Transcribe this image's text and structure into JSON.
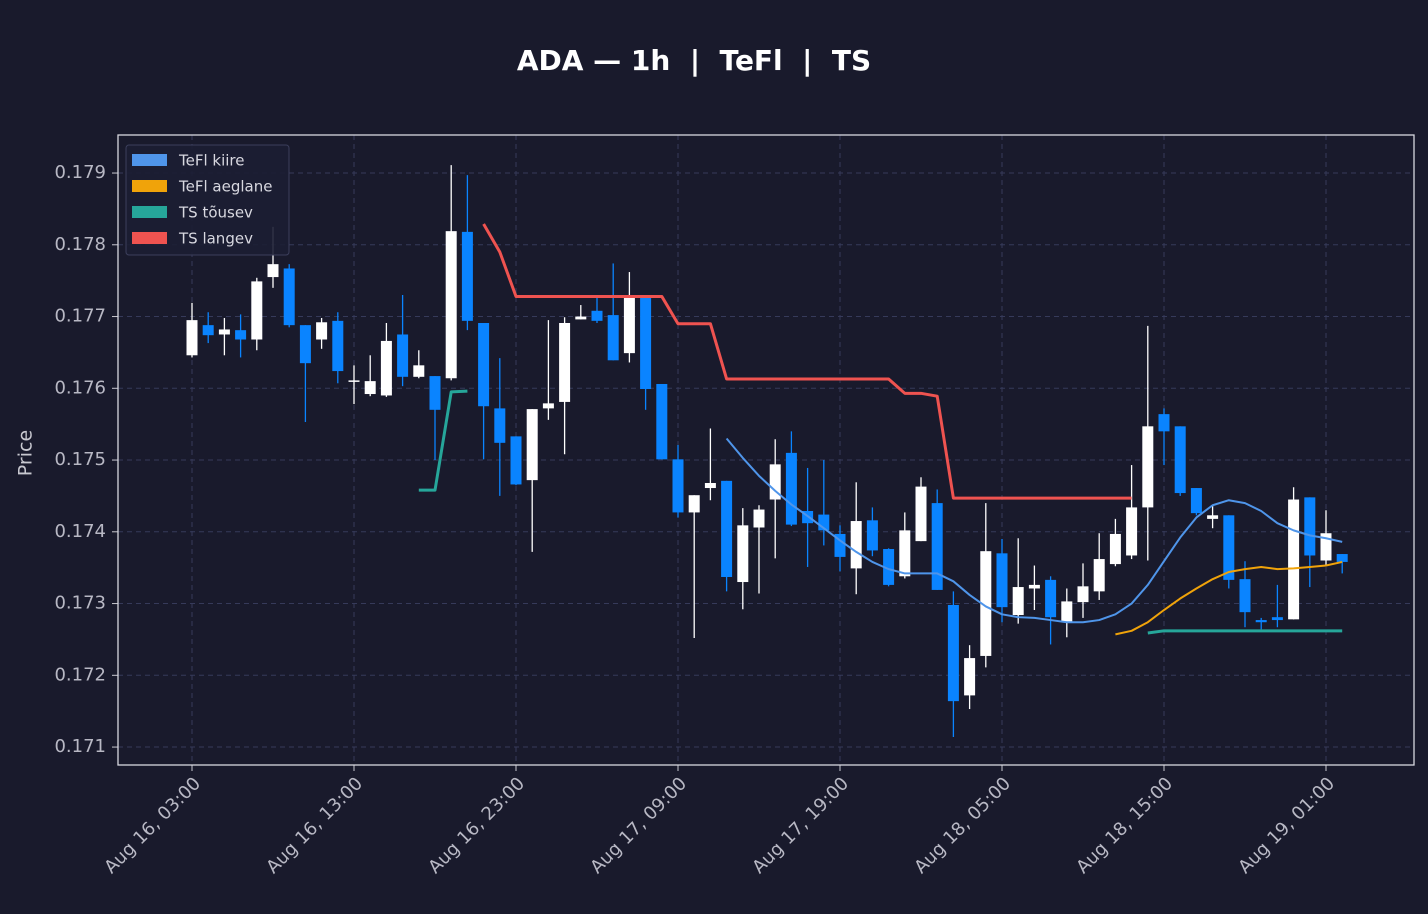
{
  "chart_data": {
    "type": "candlestick",
    "title": "ADA — 1h  |  TeFl  |  TS",
    "y_label": "Price",
    "up_color": "#ffffff",
    "down_color": "#0a84ff",
    "grid": true,
    "legend_position": "upper left",
    "ylim": [
      0.17075,
      0.17953
    ],
    "yticks": [
      0.171,
      0.172,
      0.173,
      0.174,
      0.175,
      0.176,
      0.177,
      0.178,
      0.179
    ],
    "xticks": [
      "Aug 16, 03:00",
      "Aug 16, 13:00",
      "Aug 16, 23:00",
      "Aug 17, 09:00",
      "Aug 17, 19:00",
      "Aug 18, 05:00",
      "Aug 18, 15:00",
      "Aug 19, 01:00"
    ],
    "x": [
      "Aug 16, 03:00",
      "Aug 16, 04:00",
      "Aug 16, 05:00",
      "Aug 16, 06:00",
      "Aug 16, 07:00",
      "Aug 16, 08:00",
      "Aug 16, 09:00",
      "Aug 16, 10:00",
      "Aug 16, 11:00",
      "Aug 16, 12:00",
      "Aug 16, 13:00",
      "Aug 16, 14:00",
      "Aug 16, 15:00",
      "Aug 16, 16:00",
      "Aug 16, 17:00",
      "Aug 16, 18:00",
      "Aug 16, 19:00",
      "Aug 16, 20:00",
      "Aug 16, 21:00",
      "Aug 16, 22:00",
      "Aug 16, 23:00",
      "Aug 17, 00:00",
      "Aug 17, 01:00",
      "Aug 17, 02:00",
      "Aug 17, 03:00",
      "Aug 17, 04:00",
      "Aug 17, 05:00",
      "Aug 17, 06:00",
      "Aug 17, 07:00",
      "Aug 17, 08:00",
      "Aug 17, 09:00",
      "Aug 17, 10:00",
      "Aug 17, 11:00",
      "Aug 17, 12:00",
      "Aug 17, 13:00",
      "Aug 17, 14:00",
      "Aug 17, 15:00",
      "Aug 17, 16:00",
      "Aug 17, 17:00",
      "Aug 17, 18:00",
      "Aug 17, 19:00",
      "Aug 17, 20:00",
      "Aug 17, 21:00",
      "Aug 17, 22:00",
      "Aug 17, 23:00",
      "Aug 18, 00:00",
      "Aug 18, 01:00",
      "Aug 18, 02:00",
      "Aug 18, 03:00",
      "Aug 18, 04:00",
      "Aug 18, 05:00",
      "Aug 18, 06:00",
      "Aug 18, 07:00",
      "Aug 18, 08:00",
      "Aug 18, 09:00",
      "Aug 18, 10:00",
      "Aug 18, 11:00",
      "Aug 18, 12:00",
      "Aug 18, 13:00",
      "Aug 18, 14:00",
      "Aug 18, 15:00",
      "Aug 18, 16:00",
      "Aug 18, 17:00",
      "Aug 18, 18:00",
      "Aug 18, 19:00",
      "Aug 18, 20:00",
      "Aug 18, 21:00",
      "Aug 18, 22:00",
      "Aug 18, 23:00",
      "Aug 19, 00:00",
      "Aug 19, 01:00",
      "Aug 19, 02:00"
    ],
    "open": [
      0.17646,
      0.17688,
      0.17675,
      0.17681,
      0.17668,
      0.17755,
      0.17767,
      0.17688,
      0.17668,
      0.17694,
      0.17609,
      0.17592,
      0.1759,
      0.17675,
      0.17616,
      0.17617,
      0.17614,
      0.17818,
      0.17691,
      0.17572,
      0.17533,
      0.17472,
      0.17572,
      0.17581,
      0.17696,
      0.17708,
      0.17702,
      0.17649,
      0.17727,
      0.17606,
      0.17501,
      0.17427,
      0.17461,
      0.17471,
      0.1733,
      0.17406,
      0.17445,
      0.1751,
      0.17429,
      0.17424,
      0.17397,
      0.17349,
      0.17416,
      0.17376,
      0.17338,
      0.17387,
      0.1744,
      0.17298,
      0.17172,
      0.17227,
      0.1737,
      0.17284,
      0.17321,
      0.17333,
      0.17274,
      0.17302,
      0.17317,
      0.17355,
      0.17367,
      0.17434,
      0.17564,
      0.17547,
      0.17461,
      0.17418,
      0.17423,
      0.17334,
      0.17277,
      0.17281,
      0.17278,
      0.17448,
      0.1736,
      0.17369
    ],
    "high": [
      0.17719,
      0.17706,
      0.17698,
      0.17703,
      0.17754,
      0.17825,
      0.17773,
      0.17688,
      0.17698,
      0.17706,
      0.17632,
      0.17646,
      0.17691,
      0.1773,
      0.17653,
      0.17617,
      0.17911,
      0.17897,
      0.17691,
      0.17642,
      0.17533,
      0.17571,
      0.17695,
      0.17699,
      0.17716,
      0.17728,
      0.17774,
      0.17762,
      0.17727,
      0.17606,
      0.17521,
      0.17451,
      0.17544,
      0.17471,
      0.17433,
      0.17437,
      0.17529,
      0.1754,
      0.17489,
      0.175,
      0.17409,
      0.17469,
      0.17434,
      0.17377,
      0.17427,
      0.17476,
      0.17459,
      0.17317,
      0.17242,
      0.1744,
      0.1739,
      0.17391,
      0.17353,
      0.17338,
      0.17321,
      0.17356,
      0.17398,
      0.17418,
      0.17493,
      0.17687,
      0.17572,
      0.17547,
      0.17461,
      0.17437,
      0.17423,
      0.17359,
      0.1728,
      0.17326,
      0.17462,
      0.17448,
      0.1743,
      0.17369
    ],
    "low": [
      0.17643,
      0.17663,
      0.17646,
      0.17643,
      0.17653,
      0.1774,
      0.17685,
      0.17553,
      0.17655,
      0.17607,
      0.17578,
      0.17589,
      0.17588,
      0.17603,
      0.17614,
      0.175,
      0.17611,
      0.17681,
      0.17501,
      0.1745,
      0.17465,
      0.17372,
      0.17556,
      0.17508,
      0.17696,
      0.17691,
      0.17639,
      0.17636,
      0.1757,
      0.17501,
      0.1742,
      0.17252,
      0.17444,
      0.17317,
      0.17292,
      0.17314,
      0.17363,
      0.17408,
      0.17351,
      0.17381,
      0.17345,
      0.17313,
      0.17366,
      0.17324,
      0.17335,
      0.17387,
      0.17319,
      0.17114,
      0.17153,
      0.17211,
      0.17274,
      0.17272,
      0.17291,
      0.17243,
      0.17253,
      0.1728,
      0.17305,
      0.17352,
      0.17362,
      0.1736,
      0.17493,
      0.1745,
      0.17423,
      0.17405,
      0.17321,
      0.17267,
      0.17264,
      0.17267,
      0.17278,
      0.17323,
      0.17353,
      0.17342
    ],
    "close": [
      0.17695,
      0.17674,
      0.17682,
      0.17668,
      0.17749,
      0.17773,
      0.17688,
      0.17635,
      0.17692,
      0.17624,
      0.17611,
      0.1761,
      0.17666,
      0.17616,
      0.17632,
      0.1757,
      0.17819,
      0.17694,
      0.17575,
      0.17524,
      0.17466,
      0.17571,
      0.17579,
      0.17691,
      0.177,
      0.17694,
      0.17639,
      0.17726,
      0.17599,
      0.17501,
      0.17427,
      0.17451,
      0.17468,
      0.17337,
      0.17409,
      0.17431,
      0.17494,
      0.1741,
      0.17412,
      0.17402,
      0.17365,
      0.17415,
      0.17374,
      0.17326,
      0.17402,
      0.17463,
      0.17319,
      0.17164,
      0.17224,
      0.17373,
      0.17295,
      0.17323,
      0.17326,
      0.17281,
      0.17303,
      0.17324,
      0.17362,
      0.17397,
      0.17434,
      0.17547,
      0.1754,
      0.17454,
      0.17426,
      0.17423,
      0.17333,
      0.17288,
      0.17274,
      0.17277,
      0.17445,
      0.17367,
      0.17398,
      0.17358
    ],
    "series": [
      {
        "name": "TeFl kiire",
        "color": "#4f95ea",
        "width": 2,
        "values": [
          null,
          null,
          null,
          null,
          null,
          null,
          null,
          null,
          null,
          null,
          null,
          null,
          null,
          null,
          null,
          null,
          null,
          null,
          null,
          null,
          null,
          null,
          null,
          null,
          null,
          null,
          null,
          null,
          null,
          null,
          null,
          null,
          null,
          0.1753,
          0.17503,
          0.17478,
          0.17457,
          0.17438,
          0.17422,
          0.17405,
          0.17388,
          0.17372,
          0.17358,
          0.17348,
          0.17342,
          0.17342,
          0.17342,
          0.17331,
          0.17312,
          0.17296,
          0.17285,
          0.17281,
          0.1728,
          0.17277,
          0.17274,
          0.17274,
          0.17277,
          0.17285,
          0.173,
          0.17326,
          0.17359,
          0.17392,
          0.1742,
          0.17437,
          0.17444,
          0.1744,
          0.17429,
          0.17412,
          0.17402,
          0.17395,
          0.17391,
          0.17386
        ]
      },
      {
        "name": "TeFl aeglane",
        "color": "#f0a30a",
        "width": 2,
        "values": [
          null,
          null,
          null,
          null,
          null,
          null,
          null,
          null,
          null,
          null,
          null,
          null,
          null,
          null,
          null,
          null,
          null,
          null,
          null,
          null,
          null,
          null,
          null,
          null,
          null,
          null,
          null,
          null,
          null,
          null,
          null,
          null,
          null,
          null,
          null,
          null,
          null,
          null,
          null,
          null,
          null,
          null,
          null,
          null,
          null,
          null,
          null,
          null,
          null,
          null,
          null,
          null,
          null,
          null,
          null,
          null,
          null,
          0.17257,
          0.17262,
          0.17274,
          0.17291,
          0.17307,
          0.17321,
          0.17334,
          0.17344,
          0.17348,
          0.17351,
          0.17348,
          0.17349,
          0.17351,
          0.17353,
          0.17358
        ]
      },
      {
        "name": "TS tõusev",
        "color": "#26a69a",
        "width": 3,
        "values": [
          null,
          null,
          null,
          null,
          null,
          null,
          null,
          null,
          null,
          null,
          null,
          null,
          null,
          null,
          0.17458,
          0.17458,
          0.17595,
          0.17596,
          null,
          null,
          null,
          null,
          null,
          null,
          null,
          null,
          null,
          null,
          null,
          null,
          null,
          null,
          null,
          null,
          null,
          null,
          null,
          null,
          null,
          null,
          null,
          null,
          null,
          null,
          null,
          null,
          null,
          null,
          null,
          null,
          null,
          null,
          null,
          null,
          null,
          null,
          null,
          null,
          null,
          0.17259,
          0.17262,
          0.17262,
          0.17262,
          0.17262,
          0.17262,
          0.17262,
          0.17262,
          0.17262,
          0.17262,
          0.17262,
          0.17262,
          0.17262
        ]
      },
      {
        "name": "TS langev",
        "color": "#ef5350",
        "width": 3,
        "values": [
          null,
          null,
          null,
          null,
          null,
          null,
          null,
          null,
          null,
          null,
          null,
          null,
          null,
          null,
          null,
          null,
          null,
          null,
          0.17829,
          0.1779,
          0.17728,
          0.17728,
          0.17728,
          0.17728,
          0.17728,
          0.17728,
          0.17728,
          0.17728,
          0.17728,
          0.17728,
          0.1769,
          0.1769,
          0.1769,
          0.17613,
          0.17613,
          0.17613,
          0.17613,
          0.17613,
          0.17613,
          0.17613,
          0.17613,
          0.17613,
          0.17613,
          0.17613,
          0.17593,
          0.17593,
          0.17589,
          0.17447,
          0.17447,
          0.17447,
          0.17447,
          0.17447,
          0.17447,
          0.17447,
          0.17447,
          0.17447,
          0.17447,
          0.17447,
          0.17447,
          null,
          null,
          null,
          null,
          null,
          null,
          null,
          null,
          null,
          null,
          null,
          null,
          null
        ]
      }
    ]
  }
}
